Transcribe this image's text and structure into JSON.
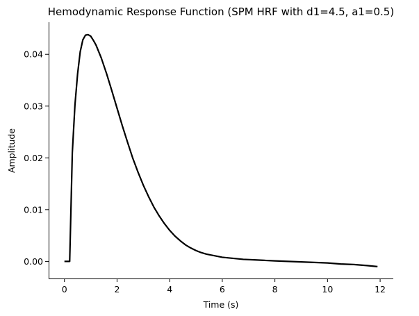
{
  "chart_data": {
    "type": "line",
    "title": "Hemodynamic Response Function (SPM HRF with d1=4.5, a1=0.5)",
    "xlabel": "Time (s)",
    "ylabel": "Amplitude",
    "xlim": [
      -0.6,
      12.5
    ],
    "ylim": [
      -0.0033,
      0.0462
    ],
    "xticks": [
      0,
      2,
      4,
      6,
      8,
      10,
      12
    ],
    "xtick_labels": [
      "0",
      "2",
      "4",
      "6",
      "8",
      "10",
      "12"
    ],
    "yticks": [
      0.0,
      0.01,
      0.02,
      0.03,
      0.04
    ],
    "ytick_labels": [
      "0.00",
      "0.01",
      "0.02",
      "0.03",
      "0.04"
    ],
    "grid": false,
    "legend": false,
    "series": [
      {
        "color": "#000000",
        "x": [
          0.0,
          0.2,
          0.3,
          0.4,
          0.5,
          0.6,
          0.7,
          0.8,
          0.9,
          1.0,
          1.1,
          1.2,
          1.4,
          1.6,
          1.8,
          2.0,
          2.2,
          2.4,
          2.6,
          2.8,
          3.0,
          3.2,
          3.4,
          3.6,
          3.8,
          4.0,
          4.2,
          4.4,
          4.6,
          4.8,
          5.0,
          5.2,
          5.4,
          5.6,
          5.8,
          6.0,
          6.4,
          6.8,
          7.2,
          7.6,
          8.0,
          8.5,
          9.0,
          9.5,
          10.0,
          10.5,
          11.0,
          11.5,
          11.9
        ],
        "y": [
          0.0,
          0.0,
          0.021,
          0.0302,
          0.0362,
          0.0405,
          0.0428,
          0.0437,
          0.0438,
          0.0435,
          0.0427,
          0.0418,
          0.0393,
          0.0363,
          0.033,
          0.0296,
          0.0262,
          0.023,
          0.0199,
          0.0172,
          0.0147,
          0.0125,
          0.0105,
          0.0088,
          0.0073,
          0.006,
          0.0049,
          0.004,
          0.0032,
          0.0026,
          0.0021,
          0.0017,
          0.0014,
          0.0012,
          0.001,
          0.0008,
          0.0006,
          0.0004,
          0.0003,
          0.0002,
          0.0001,
          0.0,
          -0.0001,
          -0.0002,
          -0.0003,
          -0.0005,
          -0.0006,
          -0.0008,
          -0.001
        ]
      }
    ]
  }
}
